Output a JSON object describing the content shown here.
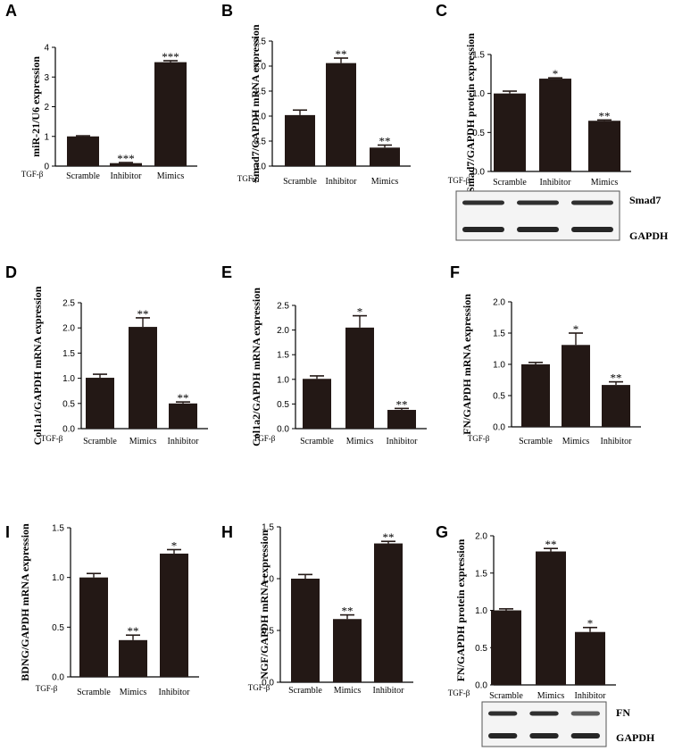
{
  "chart_data": [
    {
      "panel": "A",
      "type": "bar",
      "ylabel": "miR-21/U6  expression",
      "treatment": "TGF-β",
      "categories": [
        "Scramble",
        "Inhibitor",
        "Mimics"
      ],
      "values": [
        1.0,
        0.1,
        3.5
      ],
      "errors": [
        0.02,
        0.02,
        0.05
      ],
      "significance": [
        "",
        "***",
        "***"
      ],
      "ylim": [
        0,
        4
      ],
      "yticks": [
        "0",
        "1",
        "2",
        "3",
        "4"
      ]
    },
    {
      "panel": "B",
      "type": "bar",
      "ylabel": "Smad7/GAPDH mRNA expression",
      "treatment": "TGF-β",
      "categories": [
        "Scramble",
        "Inhibitor",
        "Mimics"
      ],
      "values": [
        1.02,
        2.06,
        0.37
      ],
      "errors": [
        0.1,
        0.1,
        0.05
      ],
      "significance": [
        "",
        "**",
        "**"
      ],
      "ylim": [
        0,
        2.5
      ],
      "yticks": [
        "0.0",
        "0.5",
        "1.0",
        "1.5",
        "2.0",
        "2.5"
      ]
    },
    {
      "panel": "C",
      "type": "bar",
      "ylabel": "Smad7/GAPDH protein expression",
      "treatment": "TGF-β",
      "categories": [
        "Scramble",
        "Inhibitor",
        "Mimics"
      ],
      "values": [
        1.0,
        1.19,
        0.65
      ],
      "errors": [
        0.03,
        0.01,
        0.01
      ],
      "significance": [
        "",
        "*",
        "**"
      ],
      "ylim": [
        0,
        1.5
      ],
      "yticks": [
        "0.0",
        "0.5",
        "1.0",
        "1.5"
      ],
      "blot_labels": [
        "Smad7",
        "GAPDH"
      ]
    },
    {
      "panel": "D",
      "type": "bar",
      "ylabel": "Col1a1/GAPDH mRNA expression",
      "treatment": "TGF-β",
      "categories": [
        "Scramble",
        "Mimics",
        "Inhibitor"
      ],
      "values": [
        1.01,
        2.02,
        0.5
      ],
      "errors": [
        0.07,
        0.18,
        0.03
      ],
      "significance": [
        "",
        "**",
        "**"
      ],
      "ylim": [
        0,
        2.5
      ],
      "yticks": [
        "0.0",
        "0.5",
        "1.0",
        "1.5",
        "2.0",
        "2.5"
      ]
    },
    {
      "panel": "E",
      "type": "bar",
      "ylabel": "Col1a2/GAPDH mRNA expression",
      "treatment": "TGF-β",
      "categories": [
        "Scramble",
        "Mimics",
        "Inhibitor"
      ],
      "values": [
        1.01,
        2.05,
        0.38
      ],
      "errors": [
        0.06,
        0.24,
        0.03
      ],
      "significance": [
        "",
        "*",
        "**"
      ],
      "ylim": [
        0,
        2.5
      ],
      "yticks": [
        "0.0",
        "0.5",
        "1.0",
        "1.5",
        "2.0",
        "2.5"
      ]
    },
    {
      "panel": "F",
      "type": "bar",
      "ylabel": "FN/GAPDH mRNA expression",
      "treatment": "TGF-β",
      "categories": [
        "Scramble",
        "Mimics",
        "Inhibitor"
      ],
      "values": [
        1.0,
        1.31,
        0.67
      ],
      "errors": [
        0.03,
        0.19,
        0.05
      ],
      "significance": [
        "",
        "*",
        "**"
      ],
      "ylim": [
        0,
        2.0
      ],
      "yticks": [
        "0.0",
        "0.5",
        "1.0",
        "1.5",
        "2.0"
      ]
    },
    {
      "panel": "I",
      "type": "bar",
      "ylabel": "BDNG/GAPDH mRNA expression",
      "treatment": "TGF-β",
      "categories": [
        "Scramble",
        "Mimics",
        "Inhibitor"
      ],
      "values": [
        1.0,
        0.37,
        1.24
      ],
      "errors": [
        0.04,
        0.05,
        0.04
      ],
      "significance": [
        "",
        "**",
        "*"
      ],
      "ylim": [
        0,
        1.5
      ],
      "yticks": [
        "0.0",
        "0.5",
        "1.0",
        "1.5"
      ]
    },
    {
      "panel": "H",
      "type": "bar",
      "ylabel": "NGF/GAPDH mRNA expression",
      "treatment": "TGF-β",
      "categories": [
        "Scramble",
        "Mimics",
        "Inhibitor"
      ],
      "values": [
        1.0,
        0.61,
        1.34
      ],
      "errors": [
        0.04,
        0.04,
        0.02
      ],
      "significance": [
        "",
        "**",
        "**"
      ],
      "ylim": [
        0,
        1.5
      ],
      "yticks": [
        "0.0",
        "0.5",
        "1.0",
        "1.5"
      ]
    },
    {
      "panel": "G",
      "type": "bar",
      "ylabel": "FN/GAPDH protein expression",
      "treatment": "TGF-β",
      "categories": [
        "Scramble",
        "Mimics",
        "Inhibitor"
      ],
      "values": [
        1.0,
        1.79,
        0.71
      ],
      "errors": [
        0.02,
        0.04,
        0.06
      ],
      "significance": [
        "",
        "**",
        "*"
      ],
      "ylim": [
        0,
        2.0
      ],
      "yticks": [
        "0.0",
        "0.5",
        "1.0",
        "1.5",
        "2.0"
      ],
      "blot_labels": [
        "FN",
        "GAPDH"
      ]
    }
  ]
}
